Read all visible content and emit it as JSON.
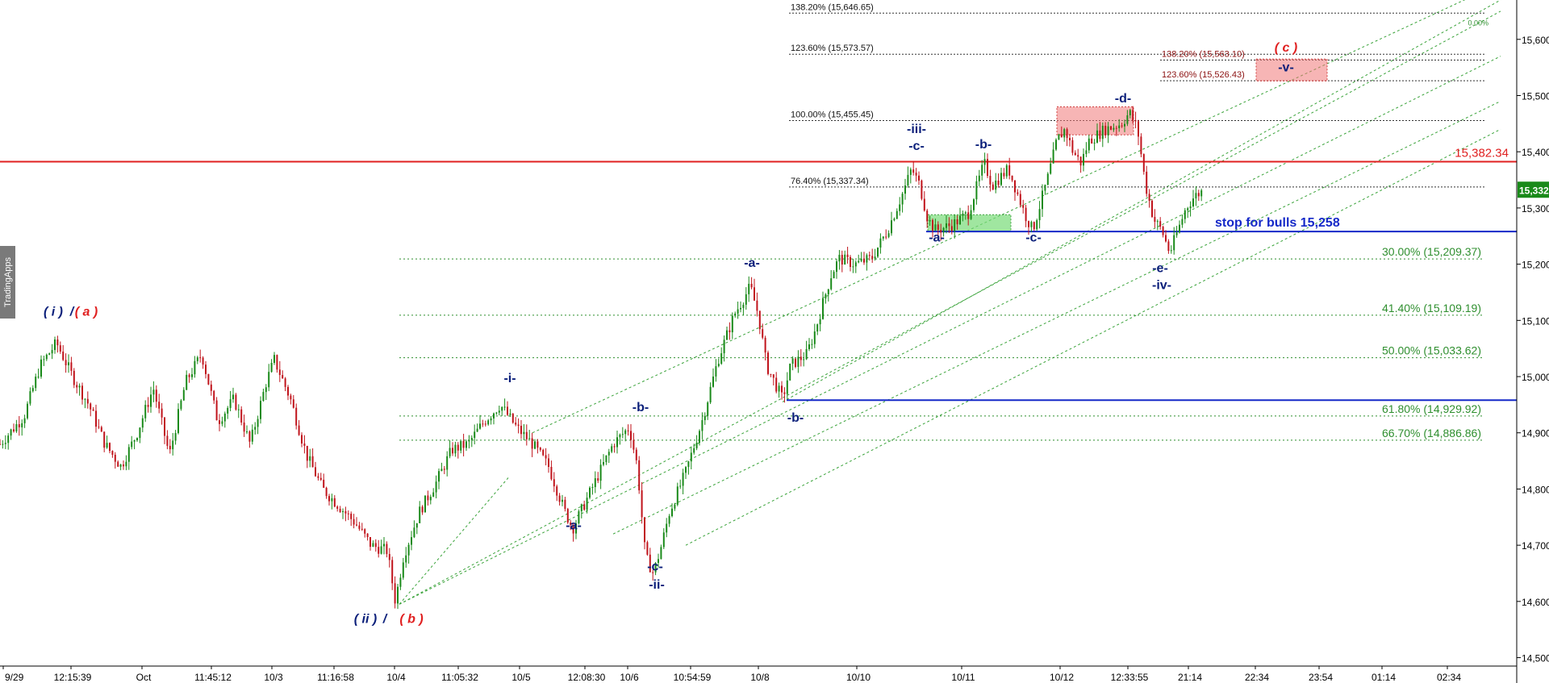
{
  "watermark": "TradingApps",
  "colors": {
    "bull": "#1a8a1a",
    "bear": "#c0141c",
    "navy": "#0b1f7a",
    "red": "#e02020",
    "fibGreen": "#2f8f2f",
    "channel": "#3aa33a",
    "blueLine": "#1428c8",
    "priceTag": "#1a8a1a",
    "axisLine": "#000000"
  },
  "chart_data": {
    "type": "candlestick",
    "title": "",
    "xlabel": "",
    "ylabel": "",
    "ylim": [
      14485,
      15670
    ],
    "yticks": [
      "15,600.00",
      "15,500.00",
      "15,400.00",
      "15,300.00",
      "15,200.00",
      "15,100.00",
      "15,000.00",
      "14,900.00",
      "14,800.00",
      "14,700.00",
      "14,600.00",
      "14,500.00"
    ],
    "ytick_values": [
      15600,
      15500,
      15400,
      15300,
      15200,
      15100,
      15000,
      14900,
      14800,
      14700,
      14600,
      14500
    ],
    "xtick_labels": [
      "9/29",
      "12:15:39",
      "Oct",
      "11:45:12",
      "10/3",
      "11:16:58",
      "10/4",
      "11:05:32",
      "10/5",
      "12:08:30",
      "10/6",
      "10:54:59",
      "10/8",
      "10/10",
      "10/11",
      "10/12",
      "12:33:55",
      "21:14",
      "22:34",
      "23:54",
      "01:14",
      "02:34"
    ],
    "xtick_positions": [
      0.4,
      8.8,
      17.6,
      26.2,
      33.7,
      41.4,
      48.9,
      56.8,
      64.4,
      72.5,
      77.8,
      85.6,
      94,
      106.2,
      119.2,
      131.4,
      139.8,
      147.3,
      155.6,
      163.5,
      171.3,
      179.4
    ],
    "x_range": [
      0,
      188
    ],
    "last_price": "15,332.50",
    "price_path": [
      [
        0,
        14880
      ],
      [
        3,
        14930
      ],
      [
        5,
        15020
      ],
      [
        7,
        15060
      ],
      [
        9,
        15000
      ],
      [
        11,
        14950
      ],
      [
        13,
        14880
      ],
      [
        15,
        14840
      ],
      [
        17,
        14900
      ],
      [
        19,
        14980
      ],
      [
        21,
        14860
      ],
      [
        23,
        14990
      ],
      [
        25,
        15040
      ],
      [
        27,
        14920
      ],
      [
        29,
        14960
      ],
      [
        31,
        14880
      ],
      [
        33,
        14990
      ],
      [
        34,
        15030
      ],
      [
        36,
        14960
      ],
      [
        38,
        14860
      ],
      [
        40,
        14800
      ],
      [
        42,
        14770
      ],
      [
        44,
        14740
      ],
      [
        46,
        14700
      ],
      [
        48,
        14690
      ],
      [
        49,
        14600
      ],
      [
        50,
        14680
      ],
      [
        52,
        14760
      ],
      [
        54,
        14810
      ],
      [
        56,
        14870
      ],
      [
        58,
        14880
      ],
      [
        60,
        14920
      ],
      [
        62,
        14950
      ],
      [
        64,
        14910
      ],
      [
        66,
        14880
      ],
      [
        68,
        14840
      ],
      [
        70,
        14760
      ],
      [
        71,
        14730
      ],
      [
        72,
        14760
      ],
      [
        74,
        14820
      ],
      [
        76,
        14880
      ],
      [
        78,
        14910
      ],
      [
        79,
        14840
      ],
      [
        80,
        14680
      ],
      [
        81,
        14650
      ],
      [
        82,
        14700
      ],
      [
        83,
        14760
      ],
      [
        85,
        14830
      ],
      [
        87,
        14920
      ],
      [
        89,
        15030
      ],
      [
        91,
        15110
      ],
      [
        93,
        15160
      ],
      [
        94,
        15110
      ],
      [
        95,
        15020
      ],
      [
        96,
        14990
      ],
      [
        97,
        14960
      ],
      [
        98,
        15020
      ],
      [
        100,
        15040
      ],
      [
        101,
        15080
      ],
      [
        103,
        15180
      ],
      [
        104,
        15210
      ],
      [
        106,
        15200
      ],
      [
        108,
        15210
      ],
      [
        110,
        15260
      ],
      [
        112,
        15330
      ],
      [
        113,
        15370
      ],
      [
        114,
        15340
      ],
      [
        115,
        15280
      ],
      [
        116,
        15260
      ],
      [
        118,
        15270
      ],
      [
        120,
        15290
      ],
      [
        122,
        15380
      ],
      [
        123,
        15340
      ],
      [
        125,
        15370
      ],
      [
        127,
        15290
      ],
      [
        128,
        15260
      ],
      [
        130,
        15360
      ],
      [
        131,
        15420
      ],
      [
        132,
        15440
      ],
      [
        133,
        15400
      ],
      [
        134,
        15380
      ],
      [
        135,
        15420
      ],
      [
        137,
        15440
      ],
      [
        139,
        15450
      ],
      [
        140,
        15470
      ],
      [
        141,
        15440
      ],
      [
        142,
        15340
      ],
      [
        143,
        15280
      ],
      [
        144,
        15260
      ],
      [
        145,
        15220
      ],
      [
        146,
        15260
      ],
      [
        147,
        15300
      ],
      [
        148,
        15320
      ],
      [
        149,
        15330
      ]
    ],
    "price_noise": [
      0,
      22,
      1,
      17,
      1
    ],
    "fib_retracement": {
      "levels": [
        {
          "label": "30.00% (15,209.37)",
          "value": 15209.37
        },
        {
          "label": "41.40% (15,109.19)",
          "value": 15109.19
        },
        {
          "label": "50.00% (15,033.62)",
          "value": 15033.62
        },
        {
          "label": "61.80% (14,929.92)",
          "value": 14929.92
        },
        {
          "label": "66.70% (14,886.86)",
          "value": 14886.86
        }
      ],
      "x_start": 49.5,
      "x_end": 184
    },
    "fib_extension": {
      "levels": [
        {
          "label": "138.20% (15,646.65)",
          "value": 15646.65
        },
        {
          "label": "123.60% (15,573.57)",
          "value": 15573.57
        },
        {
          "label": "100.00% (15,455.45)",
          "value": 15455.45
        },
        {
          "label": "76.40% (15,337.34)",
          "value": 15337.34
        }
      ],
      "x_start": 97.8,
      "x_end": 184
    },
    "fib_projection_right": {
      "levels": [
        {
          "label": "138.20% (15,563.10)",
          "value": 15563.1
        },
        {
          "label": "123.60% (15,526.43)",
          "value": 15526.43
        }
      ],
      "x_start": 143.8,
      "x_end": 184
    },
    "channel_zero_label": "0.00%",
    "channel_lines": [
      [
        [
          49.5,
          14595
        ],
        [
          186,
          15650
        ]
      ],
      [
        [
          49.5,
          14595
        ],
        [
          186,
          15570
        ]
      ],
      [
        [
          76,
          14720
        ],
        [
          186,
          15490
        ]
      ],
      [
        [
          85,
          14700
        ],
        [
          186,
          15440
        ]
      ],
      [
        [
          97,
          14955
        ],
        [
          186,
          15670
        ]
      ],
      [
        [
          66,
          14900
        ],
        [
          186,
          15700
        ]
      ],
      [
        [
          49.5,
          14595
        ],
        [
          63,
          14820
        ]
      ]
    ],
    "horizontal_lines": [
      {
        "value": 15382.34,
        "label": "15,382.34",
        "color": "red",
        "x_start": 0
      },
      {
        "value": 15258,
        "label": "stop for bulls 15,258",
        "color": "blue",
        "x_start": 114.8
      },
      {
        "value": 14958,
        "label": "",
        "color": "blue",
        "x_start": 97.5
      }
    ],
    "zones": [
      {
        "kind": "red",
        "x0": 131,
        "x1": 140.5,
        "y0": 15430,
        "y1": 15480
      },
      {
        "kind": "red",
        "x0": 155.7,
        "x1": 164.5,
        "y0": 15526,
        "y1": 15565
      },
      {
        "kind": "green",
        "x0": 115,
        "x1": 125.3,
        "y0": 15258,
        "y1": 15288
      }
    ],
    "wave_labels": [
      {
        "text": "( i )",
        "x": 6.6,
        "y": 15108,
        "color": "navy"
      },
      {
        "text": "/",
        "x": 8.9,
        "y": 15108,
        "color": "navy"
      },
      {
        "text": "( a )",
        "x": 10.7,
        "y": 15108,
        "color": "red"
      },
      {
        "text": "( ii )",
        "x": 45.3,
        "y": 14562,
        "color": "navy"
      },
      {
        "text": "/",
        "x": 47.7,
        "y": 14562,
        "color": "navy"
      },
      {
        "text": "( b )",
        "x": 51,
        "y": 14562,
        "color": "red"
      },
      {
        "text": "-i-",
        "x": 63.2,
        "y": 14990,
        "color": "navy"
      },
      {
        "text": "-a-",
        "x": 71.1,
        "y": 14728,
        "color": "navy"
      },
      {
        "text": "-b-",
        "x": 79.4,
        "y": 14938,
        "color": "navy"
      },
      {
        "text": "-c-",
        "x": 81.2,
        "y": 14655,
        "color": "navy"
      },
      {
        "text": "-ii-",
        "x": 81.4,
        "y": 14623,
        "color": "navy"
      },
      {
        "text": "-a-",
        "x": 93.2,
        "y": 15195,
        "color": "navy"
      },
      {
        "text": "-b-",
        "x": 98.6,
        "y": 14920,
        "color": "navy"
      },
      {
        "text": "-iii-",
        "x": 113.6,
        "y": 15433,
        "color": "navy"
      },
      {
        "text": "-c-",
        "x": 113.6,
        "y": 15403,
        "color": "navy"
      },
      {
        "text": "-a-",
        "x": 116.1,
        "y": 15240,
        "color": "navy"
      },
      {
        "text": "-b-",
        "x": 121.9,
        "y": 15406,
        "color": "navy"
      },
      {
        "text": "-c-",
        "x": 128.1,
        "y": 15240,
        "color": "navy"
      },
      {
        "text": "-d-",
        "x": 139.2,
        "y": 15488,
        "color": "navy"
      },
      {
        "text": "-e-",
        "x": 143.8,
        "y": 15186,
        "color": "navy"
      },
      {
        "text": "-iv-",
        "x": 144,
        "y": 15156,
        "color": "navy"
      },
      {
        "text": "( c )",
        "x": 159.4,
        "y": 15578,
        "color": "red"
      },
      {
        "text": "-v-",
        "x": 159.4,
        "y": 15543,
        "color": "navy"
      }
    ]
  }
}
